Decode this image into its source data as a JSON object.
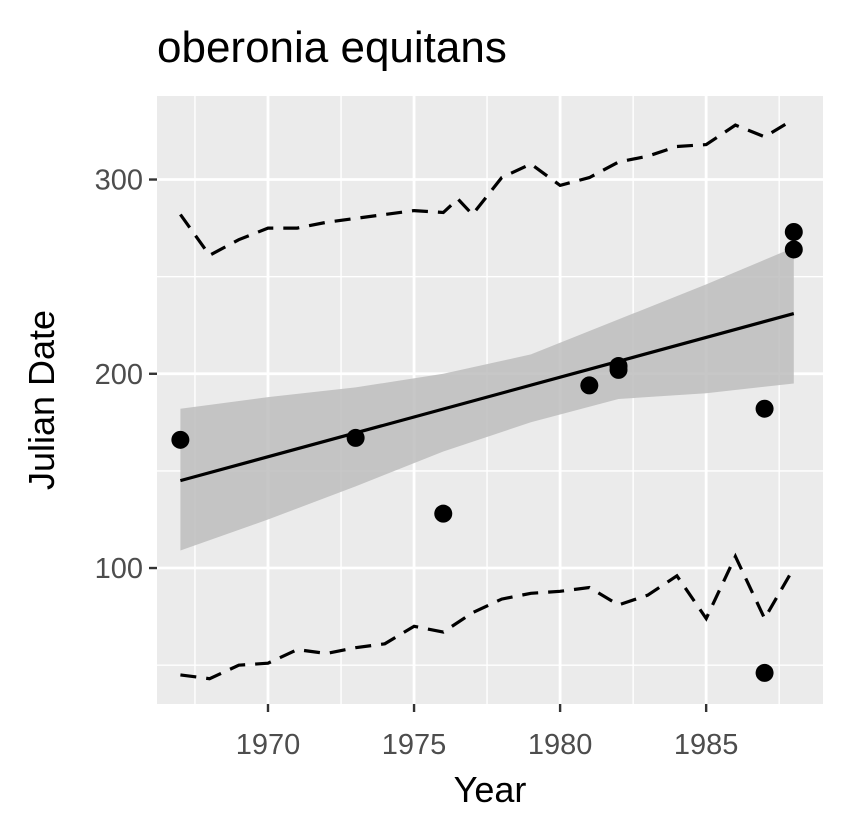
{
  "chart_data": {
    "type": "scatter",
    "title": "oberonia equitans",
    "xlabel": "Year",
    "ylabel": "Julian Date",
    "xlim": [
      1966.2,
      1989.0
    ],
    "ylim": [
      30,
      343
    ],
    "x_ticks": [
      1970,
      1975,
      1980,
      1985
    ],
    "y_ticks": [
      100,
      200,
      300
    ],
    "grid": true,
    "legend": "none",
    "colors": {
      "panel_bg": "#ebebeb",
      "grid": "#ffffff",
      "points": "#000000",
      "ribbon": "#bdbdbd",
      "fit_line": "#000000",
      "quantile_lines": "#000000",
      "tick_text": "#4d4d4d"
    },
    "points": [
      {
        "x": 1967,
        "y": 166
      },
      {
        "x": 1973,
        "y": 167
      },
      {
        "x": 1976,
        "y": 128
      },
      {
        "x": 1981,
        "y": 194
      },
      {
        "x": 1982,
        "y": 204
      },
      {
        "x": 1982,
        "y": 202
      },
      {
        "x": 1987,
        "y": 182
      },
      {
        "x": 1987,
        "y": 46
      },
      {
        "x": 1988,
        "y": 273
      },
      {
        "x": 1988,
        "y": 264
      }
    ],
    "fit_line": {
      "x": [
        1967,
        1988
      ],
      "y": [
        145,
        231
      ]
    },
    "confidence_band": {
      "x": [
        1967,
        1970,
        1973,
        1976,
        1979,
        1982,
        1985,
        1988
      ],
      "lower": [
        109,
        125,
        142,
        160,
        175,
        187,
        190,
        195
      ],
      "upper": [
        182,
        188,
        193,
        200,
        210,
        228,
        246,
        265
      ]
    },
    "upper_quantile": {
      "x": [
        1967,
        1968,
        1969,
        1970,
        1971,
        1972,
        1973,
        1974,
        1975,
        1976,
        1976.5,
        1977,
        1978,
        1979,
        1980,
        1981,
        1982,
        1983,
        1984,
        1985,
        1986,
        1987,
        1988
      ],
      "y": [
        282,
        261,
        269,
        275,
        275,
        278,
        280,
        282,
        284,
        283,
        290,
        282,
        301,
        308,
        297,
        301,
        309,
        312,
        317,
        318,
        328,
        322,
        331
      ]
    },
    "lower_quantile": {
      "x": [
        1967,
        1968,
        1969,
        1970,
        1971,
        1972,
        1973,
        1974,
        1975,
        1976,
        1977,
        1978,
        1979,
        1980,
        1981,
        1982,
        1983,
        1984,
        1985,
        1986,
        1987,
        1988
      ],
      "y": [
        45,
        43,
        50,
        51,
        58,
        56,
        59,
        61,
        70,
        67,
        77,
        84,
        87,
        88,
        90,
        81,
        86,
        96,
        74,
        106,
        74,
        100
      ]
    }
  }
}
